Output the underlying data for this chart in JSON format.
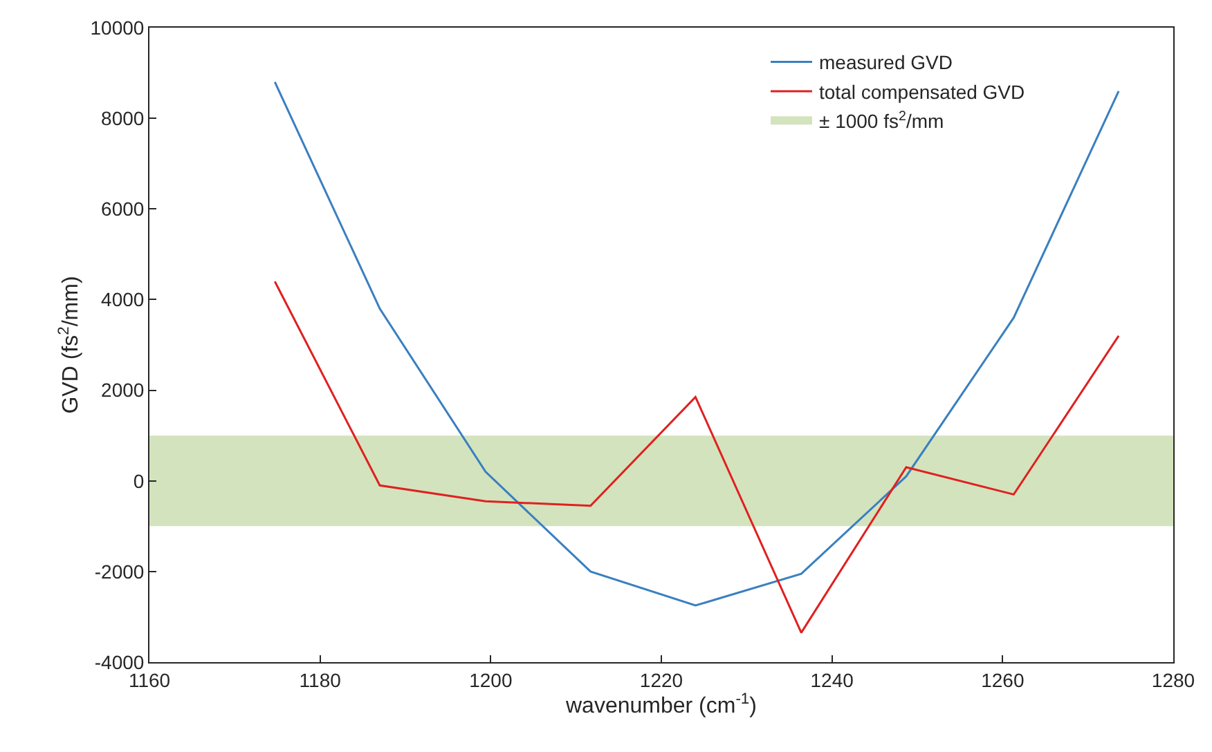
{
  "chart_data": {
    "type": "line",
    "xlabel": "wavenumber (cm$^{-1}$)",
    "ylabel": "GVD (fs$^{2}$/mm)",
    "x": [
      1174.7,
      1187,
      1199.4,
      1211.7,
      1224,
      1236.4,
      1248.7,
      1261.3,
      1273.6
    ],
    "series": [
      {
        "name": "measured GVD",
        "color": "#3a7fc0",
        "values": [
          8800,
          3800,
          200,
          -2000,
          -2750,
          -2050,
          100,
          3600,
          8600
        ]
      },
      {
        "name": "total compensated GVD",
        "color": "#e02020",
        "values": [
          4400,
          -100,
          -450,
          -550,
          1850,
          -3350,
          300,
          -300,
          3200
        ]
      }
    ],
    "bands": [
      {
        "axis": "y",
        "from": -1000,
        "to": 1000,
        "label": "± 1000 fs$^{2}$/mm",
        "color": "#d3e3bd"
      }
    ],
    "xlim": [
      1160,
      1280
    ],
    "xticks": [
      1160,
      1180,
      1200,
      1220,
      1240,
      1260,
      1280
    ],
    "ylim": [
      -4000,
      10000
    ],
    "yticks": [
      -4000,
      -2000,
      0,
      2000,
      4000,
      6000,
      8000,
      10000
    ],
    "legend": "top right",
    "marker": "none",
    "line_style": "solid"
  }
}
